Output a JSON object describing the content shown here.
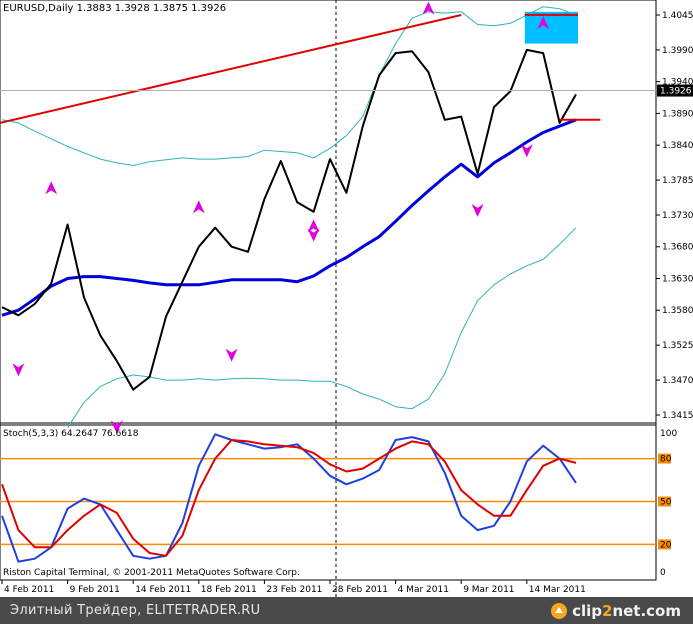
{
  "header": {
    "symbol_line": "EURUSD,Daily  1.3883 1.3928 1.3875 1.3926"
  },
  "stoch": {
    "title": "Stoch(5,3,3) 64.2647 76.6618",
    "copyright": "Riston Capital Terminal, © 2001-2011 MetaQuotes Software Corp."
  },
  "price_axis": {
    "ticks": [
      "1.4045",
      "1.3990",
      "1.3940",
      "1.3890",
      "1.3840",
      "1.3785",
      "1.3730",
      "1.3680",
      "1.3630",
      "1.3580",
      "1.3525",
      "1.3470",
      "1.3415"
    ],
    "current_price_label": "1.3926",
    "current_price": 1.3926
  },
  "date_axis": {
    "labels": [
      "4 Feb 2011",
      "9 Feb 2011",
      "14 Feb 2011",
      "18 Feb 2011",
      "23 Feb 2011",
      "28 Feb 2011",
      "4 Mar 2011",
      "9 Mar 2011",
      "14 Mar 2011"
    ]
  },
  "stoch_axis": {
    "ticks": [
      "100",
      "80",
      "50",
      "20",
      "0"
    ],
    "levels": [
      80,
      50,
      20
    ]
  },
  "footer": {
    "site_text": "Элитный Трейдер, ELITETRADER.RU",
    "logo_text": "clip2net.com",
    "logo_main": "clip",
    "logo_accent": "2",
    "logo_end": "net.com"
  },
  "colors": {
    "price_line": "#000000",
    "moving_average": "#0000dd",
    "bands": "#2fb3b3",
    "trendline": "#e00000",
    "arrows": "#e000e0",
    "stoch_main": "#1f3fe0",
    "stoch_signal": "#e00000",
    "stoch_levels": "#ff8c00",
    "highlight_box": "#00bfff"
  },
  "chart_data": {
    "type": "line",
    "title": "EURUSD,Daily",
    "ylim": [
      1.339,
      1.407
    ],
    "series": [
      {
        "name": "price",
        "values": [
          1.3585,
          1.3572,
          1.359,
          1.3622,
          1.3715,
          1.36,
          1.354,
          1.35,
          1.3455,
          1.3475,
          1.357,
          1.3625,
          1.368,
          1.371,
          1.368,
          1.3672,
          1.3755,
          1.3815,
          1.375,
          1.3735,
          1.3818,
          1.3765,
          1.387,
          1.395,
          1.3985,
          1.3988,
          1.3955,
          1.388,
          1.3885,
          1.3795,
          1.39,
          1.3925,
          1.399,
          1.3985,
          1.3875,
          1.392
        ]
      },
      {
        "name": "moving_average",
        "values": [
          1.3572,
          1.358,
          1.3598,
          1.3618,
          1.363,
          1.3633,
          1.3633,
          1.363,
          1.3627,
          1.3623,
          1.362,
          1.362,
          1.362,
          1.3624,
          1.3628,
          1.3628,
          1.3628,
          1.3628,
          1.3625,
          1.3634,
          1.365,
          1.3663,
          1.368,
          1.3696,
          1.372,
          1.3745,
          1.3768,
          1.379,
          1.381,
          1.379,
          1.3812,
          1.3828,
          1.3845,
          1.386,
          1.387,
          1.388
        ]
      },
      {
        "name": "upper_band",
        "values": [
          1.388,
          1.3875,
          1.3862,
          1.385,
          1.3838,
          1.3828,
          1.3818,
          1.3812,
          1.3808,
          1.3814,
          1.3817,
          1.382,
          1.3818,
          1.3818,
          1.382,
          1.3822,
          1.3832,
          1.383,
          1.3828,
          1.382,
          1.3835,
          1.3855,
          1.3885,
          1.395,
          1.4,
          1.404,
          1.405,
          1.4048,
          1.405,
          1.403,
          1.4028,
          1.4032,
          1.4045,
          1.4058,
          1.4055,
          1.4045
        ]
      },
      {
        "name": "lower_band",
        "values": [
          null,
          null,
          null,
          null,
          1.3395,
          1.3435,
          1.346,
          1.3472,
          1.3478,
          1.3475,
          1.347,
          1.347,
          1.3472,
          1.347,
          1.3472,
          1.3473,
          1.3472,
          1.347,
          1.347,
          1.3468,
          1.3468,
          1.346,
          1.3448,
          1.344,
          1.3428,
          1.3425,
          1.344,
          1.348,
          1.3545,
          1.3595,
          1.362,
          1.3637,
          1.365,
          1.366,
          1.3684,
          1.371
        ]
      },
      {
        "name": "stoch_main",
        "values": [
          40,
          8,
          10,
          18,
          45,
          52,
          48,
          30,
          12,
          10,
          12,
          35,
          75,
          97,
          93,
          90,
          87,
          88,
          90,
          80,
          68,
          62,
          66,
          72,
          93,
          95,
          92,
          70,
          40,
          30,
          33,
          50,
          78,
          89,
          80,
          63
        ]
      },
      {
        "name": "stoch_signal",
        "values": [
          62,
          30,
          18,
          18,
          30,
          40,
          48,
          42,
          24,
          14,
          12,
          26,
          58,
          80,
          93,
          92,
          90,
          89,
          88,
          84,
          76,
          71,
          73,
          80,
          87,
          92,
          90,
          78,
          58,
          48,
          40,
          40,
          58,
          75,
          80,
          77
        ]
      }
    ],
    "trendline": {
      "from": [
        0,
        1.3875
      ],
      "to": [
        28,
        1.4045
      ]
    },
    "horizontal_line": {
      "from": 34,
      "to": 36,
      "y": 1.388
    },
    "up_arrows_at": [
      [
        3,
        1.3772
      ],
      [
        12,
        1.3742
      ],
      [
        19,
        1.3712
      ],
      [
        26,
        1.4055
      ],
      [
        33,
        1.4032
      ]
    ],
    "down_arrows_at": [
      [
        1,
        1.3487
      ],
      [
        7,
        1.3397
      ],
      [
        14,
        1.351
      ],
      [
        19,
        1.3699
      ],
      [
        29,
        1.3738
      ],
      [
        32,
        1.3832
      ]
    ],
    "highlight_box": {
      "x": [
        32,
        35
      ],
      "y_top": 1.405,
      "y_bottom": 1.4
    }
  }
}
